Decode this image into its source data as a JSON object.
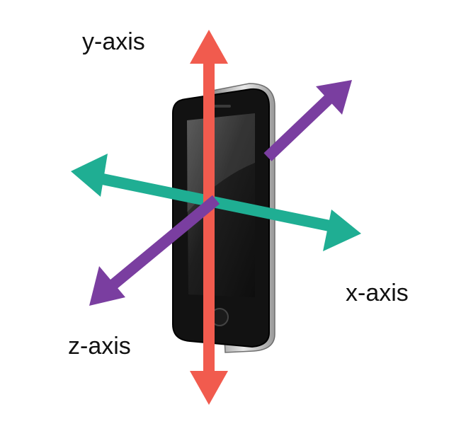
{
  "axes": {
    "y": {
      "label": "y-axis",
      "color": "#f15b4e"
    },
    "x": {
      "label": "x-axis",
      "color": "#1fae93"
    },
    "z": {
      "label": "z-axis",
      "color": "#7a3ea0"
    }
  },
  "device": {
    "body_color": "#151515",
    "screen_color": "#2a2a2a",
    "bezel_color": "#c9c9c9"
  },
  "icons": [
    "phone-icon",
    "arrow-icon"
  ]
}
